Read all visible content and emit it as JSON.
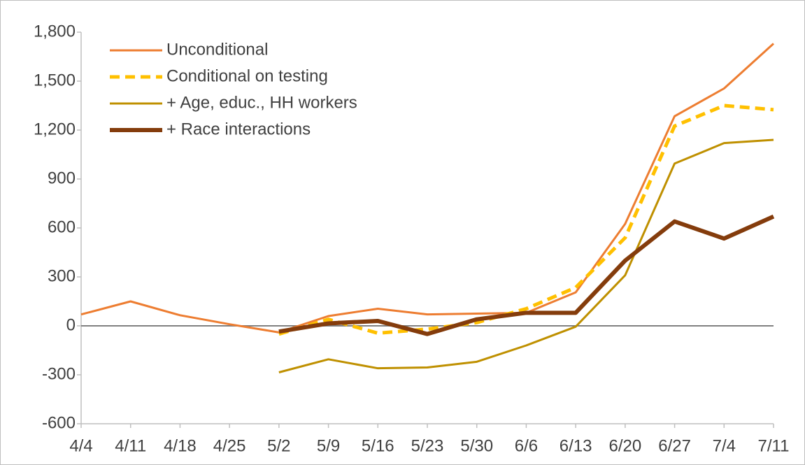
{
  "chart_data": {
    "type": "line",
    "categories": [
      "4/4",
      "4/11",
      "4/18",
      "4/25",
      "5/2",
      "5/9",
      "5/16",
      "5/23",
      "5/30",
      "6/6",
      "6/13",
      "6/20",
      "6/27",
      "7/4",
      "7/11"
    ],
    "series": [
      {
        "name": "Unconditional",
        "color": "#ED7D31",
        "dashed": false,
        "values": [
          70,
          150,
          65,
          10,
          -40,
          60,
          105,
          70,
          75,
          80,
          205,
          625,
          1285,
          1455,
          1730
        ]
      },
      {
        "name": "Conditional on testing",
        "color": "#FFC000",
        "dashed": true,
        "values": [
          null,
          null,
          null,
          null,
          -50,
          40,
          -45,
          -20,
          20,
          105,
          235,
          540,
          1225,
          1350,
          1325
        ]
      },
      {
        "name": "+ Age, educ., HH workers",
        "color": "#BF9000",
        "dashed": false,
        "values": [
          null,
          null,
          null,
          null,
          -285,
          -205,
          -260,
          -255,
          -220,
          -120,
          -5,
          310,
          995,
          1120,
          1140
        ]
      },
      {
        "name": "+ Race interactions",
        "color": "#843C0C",
        "dashed": false,
        "values": [
          null,
          null,
          null,
          null,
          -35,
          15,
          30,
          -50,
          40,
          80,
          80,
          400,
          640,
          535,
          670
        ]
      }
    ],
    "ylim": [
      -600,
      1800
    ],
    "yticks": [
      -600,
      -300,
      0,
      300,
      600,
      900,
      {
        "value": 1200,
        "label": "1,200"
      },
      {
        "value": 1500,
        "label": "1,500"
      },
      {
        "value": 1800,
        "label": "1,800"
      }
    ],
    "legend": "upper left",
    "grid": false
  }
}
